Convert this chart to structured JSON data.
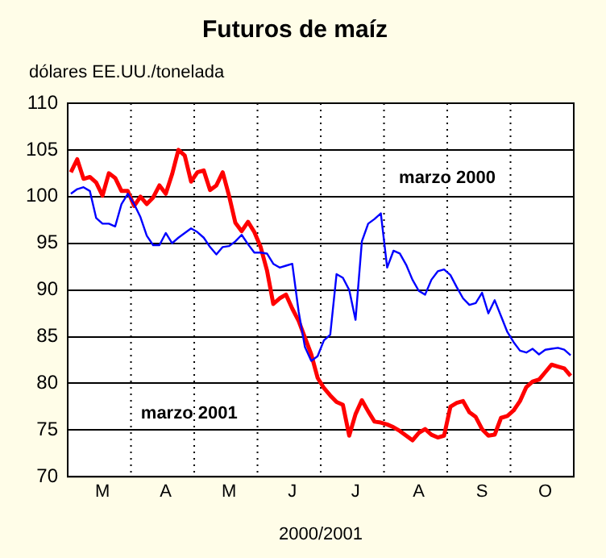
{
  "chart_data": {
    "type": "line",
    "title": "Futuros de maíz",
    "ylabel": "dólares EE.UU./tonelada",
    "xlabel": "2000/2001",
    "categories": [
      null,
      null,
      null,
      null,
      null,
      "M",
      null,
      null,
      null,
      null,
      null,
      null,
      null,
      null,
      null,
      "A",
      null,
      null,
      null,
      null,
      null,
      null,
      null,
      null,
      null,
      "M",
      null,
      null,
      null,
      null,
      null,
      null,
      null,
      null,
      null,
      "J",
      null,
      null,
      null,
      null,
      null,
      null,
      null,
      null,
      null,
      "J",
      null,
      null,
      null,
      null,
      null,
      null,
      null,
      null,
      null,
      "A",
      null,
      null,
      null,
      null,
      null,
      null,
      null,
      null,
      null,
      "S",
      null,
      null,
      null,
      null,
      null,
      null,
      null,
      null,
      null,
      "O",
      null,
      null,
      null,
      null
    ],
    "ylim": [
      70,
      110
    ],
    "yticks": [
      70,
      75,
      80,
      85,
      90,
      95,
      100,
      105,
      110
    ],
    "grid": true,
    "legend": false,
    "marker": "none",
    "line_style": "solid",
    "annotations": [
      "marzo 2000",
      "marzo 2001"
    ],
    "series": [
      {
        "color": "#0000ff",
        "values": [
          100.3,
          100.8,
          101,
          100.6,
          97.7,
          97.1,
          97.1,
          96.8,
          99.2,
          100.3,
          99.2,
          97.8,
          95.8,
          94.8,
          94.8,
          96.1,
          95,
          95.6,
          96.1,
          96.6,
          96.2,
          95.6,
          94.6,
          93.8,
          94.6,
          94.7,
          95.2,
          95.9,
          94.9,
          94,
          94,
          93.9,
          92.8,
          92.4,
          92.6,
          92.8,
          87.7,
          83.9,
          82.4,
          82.9,
          84.6,
          85.2,
          91.7,
          91.3,
          90,
          86.8,
          95.2,
          97.1,
          97.6,
          98.2,
          92.4,
          94.2,
          93.9,
          92.7,
          91.1,
          89.9,
          89.5,
          91.1,
          92,
          92.2,
          91.6,
          90.3,
          89.1,
          88.4,
          88.6,
          89.7,
          87.5,
          88.9,
          87.2,
          85.5,
          84.4,
          83.5,
          83.3,
          83.7,
          83.1,
          83.6,
          83.7,
          83.8,
          83.6,
          83
        ]
      },
      {
        "color": "#ff0000",
        "values": [
          102.6,
          104,
          101.9,
          102.1,
          101.5,
          100.1,
          102.5,
          102,
          100.6,
          100.6,
          99,
          100,
          99.2,
          99.9,
          101.2,
          100.3,
          102.4,
          105,
          104.4,
          101.6,
          102.6,
          102.8,
          100.7,
          101.2,
          102.6,
          100.1,
          97.2,
          96.3,
          97.3,
          96.2,
          94.6,
          92.1,
          88.5,
          89.1,
          89.5,
          88,
          86.7,
          84.9,
          83.1,
          80.6,
          79.5,
          78.7,
          78,
          77.7,
          74.4,
          76.7,
          78.2,
          77,
          75.9,
          75.8,
          75.6,
          75.3,
          74.9,
          74.4,
          73.9,
          74.7,
          75.1,
          74.5,
          74.2,
          74.4,
          77.5,
          77.9,
          78.1,
          76.9,
          76.4,
          75.1,
          74.4,
          74.5,
          76.3,
          76.5,
          77.1,
          78.1,
          79.6,
          80.2,
          80.4,
          81.2,
          82,
          81.8,
          81.6,
          80.8
        ]
      }
    ]
  }
}
